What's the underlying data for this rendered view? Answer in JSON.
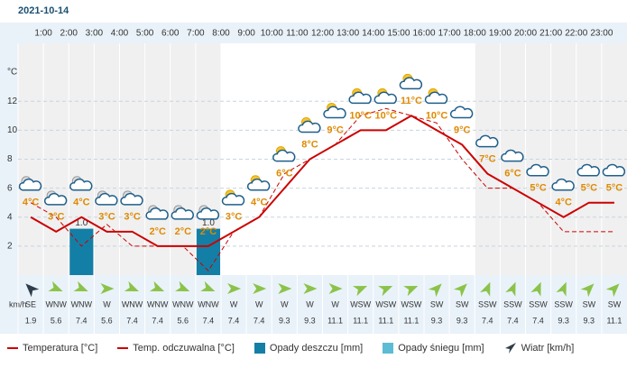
{
  "date": "2021-10-14",
  "chart_data": {
    "type": "line",
    "time_labels": [
      "1:00",
      "2:00",
      "3:00",
      "4:00",
      "5:00",
      "6:00",
      "7:00",
      "8:00",
      "9:00",
      "10:00",
      "11:00",
      "12:00",
      "13:00",
      "14:00",
      "15:00",
      "16:00",
      "17:00",
      "18:00",
      "19:00",
      "20:00",
      "21:00",
      "22:00",
      "23:00"
    ],
    "y_label": "°C",
    "ylim": [
      0,
      16
    ],
    "yticks": [
      2,
      4,
      6,
      8,
      10,
      12
    ],
    "grid": true,
    "y2lim": [
      0,
      5
    ],
    "series": [
      {
        "name": "Temperatura [°C]",
        "color": "#cc0000",
        "dash": false,
        "values": [
          4,
          3,
          4,
          3,
          3,
          2,
          2,
          2,
          3,
          4,
          6,
          8,
          9,
          10,
          10,
          11,
          10,
          9,
          7,
          6,
          5,
          4,
          5,
          5
        ],
        "value_labels": [
          "4°C",
          "3°C",
          "4°C",
          "3°C",
          "3°C",
          "2°C",
          "2°C",
          "2°C",
          "3°C",
          "4°C",
          "6°C",
          "8°C",
          "9°C",
          "10°C",
          "10°C",
          "11°C",
          "10°C",
          "9°C",
          "7°C",
          "6°C",
          "5°C",
          "4°C",
          "5°C",
          "5°C"
        ]
      },
      {
        "name": "Temp. odczuwalna [°C]",
        "color": "#cc0000",
        "dash": true,
        "values": [
          5,
          4,
          2,
          3.5,
          2,
          2,
          2,
          0.3,
          3,
          4,
          7,
          8,
          9,
          11,
          11.5,
          11,
          10.5,
          8,
          6,
          6,
          5,
          3,
          3,
          3
        ]
      },
      {
        "name": "Opady deszczu [mm]",
        "color": "#137fa6",
        "axis": "y2",
        "values": [
          0,
          0,
          1,
          0,
          0,
          0,
          0,
          1,
          0,
          0,
          0,
          0,
          0,
          0,
          0,
          0,
          0,
          0,
          0,
          0,
          0,
          0,
          0,
          0
        ],
        "value_labels": [
          null,
          null,
          "1.0",
          null,
          null,
          null,
          null,
          "1.0",
          null,
          null,
          null,
          null,
          null,
          null,
          null,
          null,
          null,
          null,
          null,
          null,
          null,
          null,
          null,
          null
        ]
      },
      {
        "name": "Opady śniegu [mm]",
        "color": "#5bbcd3",
        "axis": "y2",
        "values": [
          null,
          null,
          null,
          null,
          null,
          null,
          null,
          null,
          null,
          null,
          null,
          null,
          null,
          null,
          null,
          null,
          null,
          null,
          null,
          null,
          null,
          null,
          null,
          null
        ]
      }
    ],
    "wind": {
      "name": "Wiatr [km/h]",
      "unit": "km/h",
      "directions": [
        "SE",
        "WNW",
        "WNW",
        "W",
        "WNW",
        "WNW",
        "WNW",
        "WNW",
        "W",
        "W",
        "W",
        "W",
        "W",
        "WSW",
        "WSW",
        "WSW",
        "SW",
        "SW",
        "SSW",
        "SSW",
        "SSW",
        "SSW",
        "SW",
        "SW"
      ],
      "speeds": [
        1.9,
        5.6,
        7.4,
        5.6,
        7.4,
        7.4,
        5.6,
        7.4,
        7.4,
        7.4,
        9.3,
        9.3,
        11.1,
        11.1,
        11.1,
        11.1,
        9.3,
        9.3,
        7.4,
        7.4,
        7.4,
        9.3,
        9.3,
        11.1
      ]
    }
  }
}
